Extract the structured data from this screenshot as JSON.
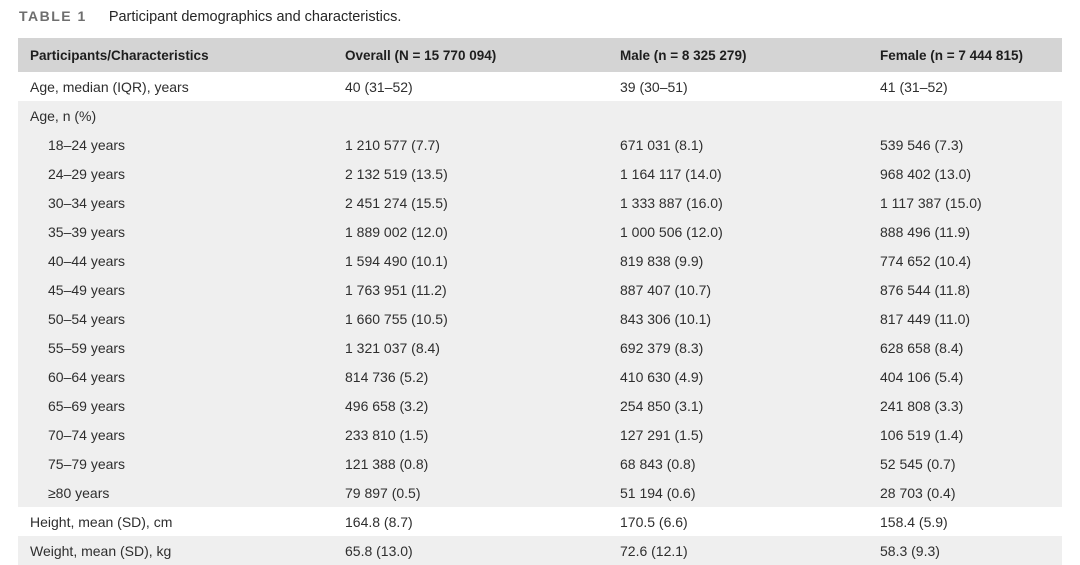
{
  "table_label": "TABLE 1",
  "caption": "Participant demographics and characteristics.",
  "colors": {
    "header_bg": "#d4d4d4",
    "stripe_bg": "#efefef",
    "text": "#2b2b2b",
    "label": "#6e6e6e"
  },
  "table": {
    "columns": [
      "Participants/Characteristics",
      "Overall (N = 15 770 094)",
      "Male (n = 8 325 279)",
      "Female (n = 7 444 815)"
    ],
    "rows": [
      {
        "label": "Age, median (IQR), years",
        "values": [
          "40 (31–52)",
          "39 (30–51)",
          "41 (31–52)"
        ]
      },
      {
        "label": "Age, n (%)",
        "values": [
          "",
          "",
          ""
        ]
      },
      {
        "label": "18–24 years",
        "values": [
          "1 210 577 (7.7)",
          "671 031 (8.1)",
          "539 546 (7.3)"
        ]
      },
      {
        "label": "24–29 years",
        "values": [
          "2 132 519 (13.5)",
          "1 164 117 (14.0)",
          "968 402 (13.0)"
        ]
      },
      {
        "label": "30–34 years",
        "values": [
          "2 451 274 (15.5)",
          "1 333 887 (16.0)",
          "1 117 387 (15.0)"
        ]
      },
      {
        "label": "35–39 years",
        "values": [
          "1 889 002 (12.0)",
          "1 000 506 (12.0)",
          "888 496 (11.9)"
        ]
      },
      {
        "label": "40–44 years",
        "values": [
          "1 594 490 (10.1)",
          "819 838 (9.9)",
          "774 652 (10.4)"
        ]
      },
      {
        "label": "45–49 years",
        "values": [
          "1 763 951 (11.2)",
          "887 407 (10.7)",
          "876 544 (11.8)"
        ]
      },
      {
        "label": "50–54 years",
        "values": [
          "1 660 755 (10.5)",
          "843 306 (10.1)",
          "817 449 (11.0)"
        ]
      },
      {
        "label": "55–59 years",
        "values": [
          "1 321 037 (8.4)",
          "692 379 (8.3)",
          "628 658 (8.4)"
        ]
      },
      {
        "label": "60–64 years",
        "values": [
          "814 736 (5.2)",
          "410 630 (4.9)",
          "404 106 (5.4)"
        ]
      },
      {
        "label": "65–69 years",
        "values": [
          "496 658 (3.2)",
          "254 850 (3.1)",
          "241 808 (3.3)"
        ]
      },
      {
        "label": "70–74 years",
        "values": [
          "233 810 (1.5)",
          "127 291 (1.5)",
          "106 519 (1.4)"
        ]
      },
      {
        "label": "75–79 years",
        "values": [
          "121 388 (0.8)",
          "68 843 (0.8)",
          "52 545 (0.7)"
        ]
      },
      {
        "label": "≥80 years",
        "values": [
          "79 897 (0.5)",
          "51 194 (0.6)",
          "28 703 (0.4)"
        ]
      },
      {
        "label": "Height, mean (SD), cm",
        "values": [
          "164.8 (8.7)",
          "170.5 (6.6)",
          "158.4 (5.9)"
        ]
      },
      {
        "label": "Weight, mean (SD), kg",
        "values": [
          "65.8 (13.0)",
          "72.6 (12.1)",
          "58.3 (9.3)"
        ]
      }
    ]
  }
}
